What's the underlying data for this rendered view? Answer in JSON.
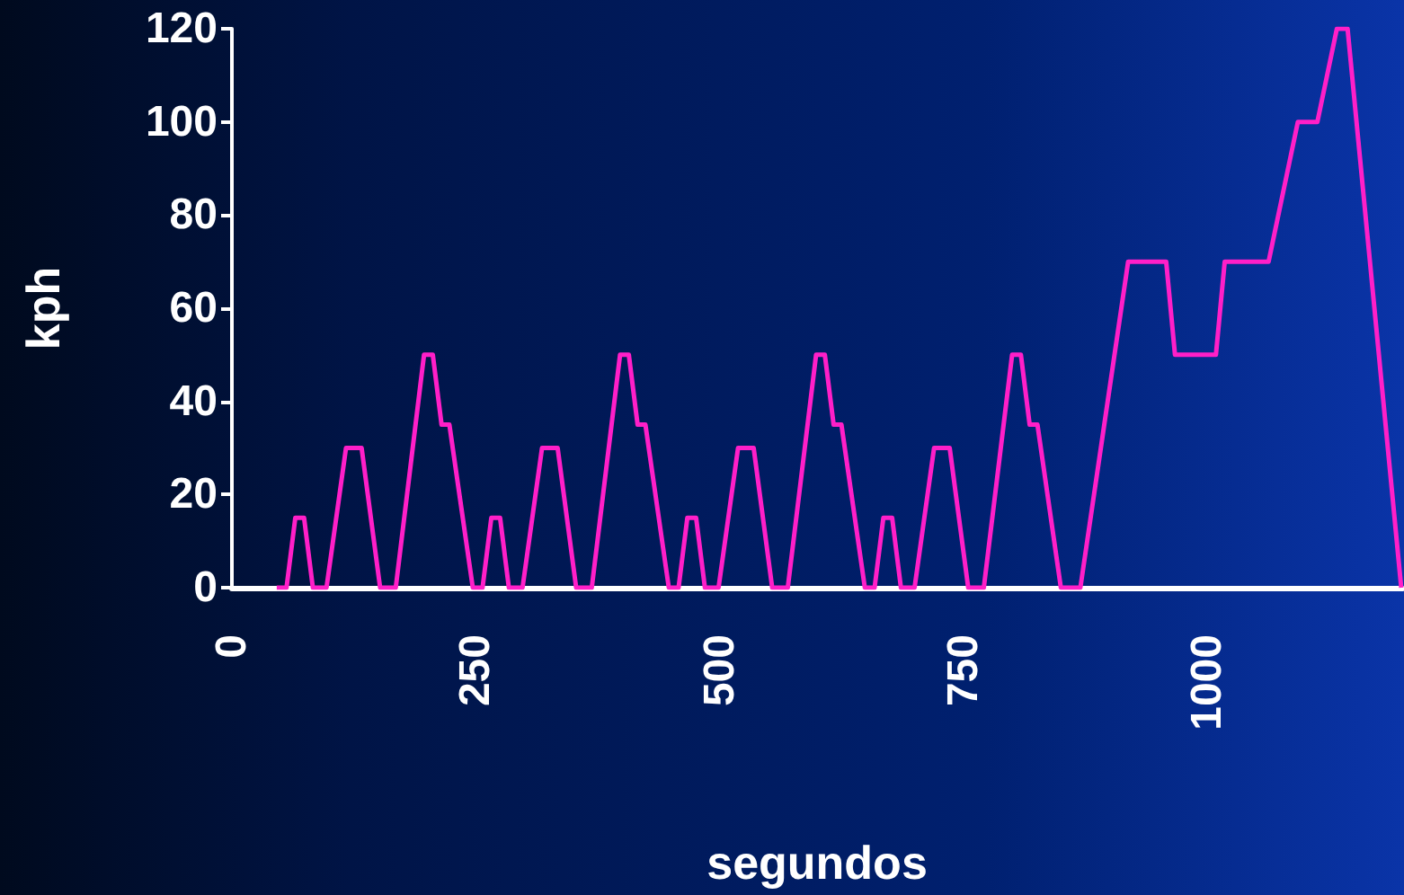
{
  "chart_data": {
    "type": "line",
    "xlabel": "segundos",
    "ylabel": "kph",
    "color": "#ff1fc8",
    "marker": "none",
    "grid": false,
    "x": [
      46,
      56,
      65,
      74,
      83,
      97,
      117,
      133,
      152,
      168,
      197,
      206,
      215,
      223,
      247,
      257,
      266,
      275,
      284,
      298,
      318,
      334,
      353,
      369,
      398,
      407,
      416,
      424,
      448,
      458,
      467,
      476,
      485,
      499,
      519,
      535,
      554,
      570,
      599,
      608,
      617,
      625,
      649,
      659,
      668,
      677,
      686,
      700,
      720,
      736,
      755,
      771,
      800,
      809,
      818,
      826,
      850,
      870,
      919,
      958,
      967,
      1009,
      1018,
      1063,
      1093,
      1113,
      1133,
      1144,
      1199
    ],
    "values": [
      0,
      0,
      15,
      15,
      0,
      0,
      30,
      30,
      0,
      0,
      50,
      50,
      35,
      35,
      0,
      0,
      15,
      15,
      0,
      0,
      30,
      30,
      0,
      0,
      50,
      50,
      35,
      35,
      0,
      0,
      15,
      15,
      0,
      0,
      30,
      30,
      0,
      0,
      50,
      50,
      35,
      35,
      0,
      0,
      15,
      15,
      0,
      0,
      30,
      30,
      0,
      0,
      50,
      50,
      35,
      35,
      0,
      0,
      70,
      70,
      50,
      50,
      70,
      70,
      100,
      100,
      120,
      120,
      0
    ],
    "xlim": [
      0,
      1200
    ],
    "xticks": [
      0,
      250,
      500,
      750,
      1000
    ],
    "ylim": [
      0,
      120
    ],
    "yticks": [
      0,
      20,
      40,
      60,
      80,
      100,
      120
    ]
  }
}
